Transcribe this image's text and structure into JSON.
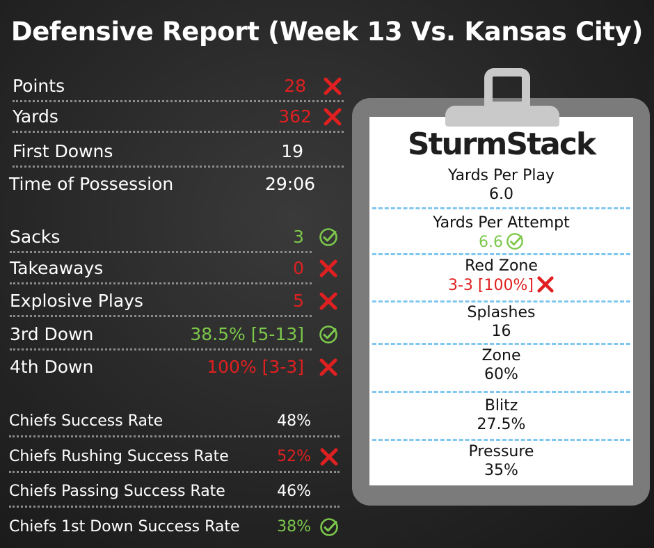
{
  "title": "Defensive Report (Week 13 Vs. Kansas City)",
  "colors": {
    "bad": "#e02020",
    "good": "#7cc84b",
    "text": "#ffffff",
    "dots": "#8c8c8c",
    "dash": "#7fc6f0"
  },
  "game_stats": [
    {
      "label": "Points",
      "value": "28",
      "status": "bad"
    },
    {
      "label": "Yards",
      "value": "362",
      "status": "bad"
    },
    {
      "label": "First Downs",
      "value": "19",
      "status": "none"
    },
    {
      "label": "Time of Possession",
      "value": "29:06",
      "status": "none"
    }
  ],
  "defense_stats": [
    {
      "label": "Sacks",
      "value": "3",
      "status": "good"
    },
    {
      "label": "Takeaways",
      "value": "0",
      "status": "bad"
    },
    {
      "label": "Explosive Plays",
      "value": "5",
      "status": "bad"
    },
    {
      "label": "3rd Down",
      "value": "38.5% [5-13]",
      "status": "good"
    },
    {
      "label": "4th Down",
      "value": "100% [3-3]",
      "status": "bad"
    }
  ],
  "success_rates": [
    {
      "label": "Chiefs Success Rate",
      "value": "48%",
      "status": "none"
    },
    {
      "label": "Chiefs Rushing Success Rate",
      "value": "52%",
      "status": "bad"
    },
    {
      "label": "Chiefs Passing Success Rate",
      "value": "46%",
      "status": "none"
    },
    {
      "label": "Chiefs 1st Down Success Rate",
      "value": "38%",
      "status": "good"
    }
  ],
  "clipboard": {
    "logo": "SturmStack",
    "stats": [
      {
        "label": "Yards Per Play",
        "value": "6.0",
        "status": "none"
      },
      {
        "label": "Yards Per Attempt",
        "value": "6.6",
        "status": "good"
      },
      {
        "label": "Red Zone",
        "value": "3-3 [100%]",
        "status": "bad"
      },
      {
        "label": "Splashes",
        "value": "16",
        "status": "none"
      },
      {
        "label": "Zone",
        "value": "60%",
        "status": "none"
      },
      {
        "label": "Blitz",
        "value": "27.5%",
        "status": "none"
      },
      {
        "label": "Pressure",
        "value": "35%",
        "status": "none"
      }
    ]
  },
  "icons": {
    "good": "check-circle-icon",
    "bad": "x-mark-icon"
  }
}
